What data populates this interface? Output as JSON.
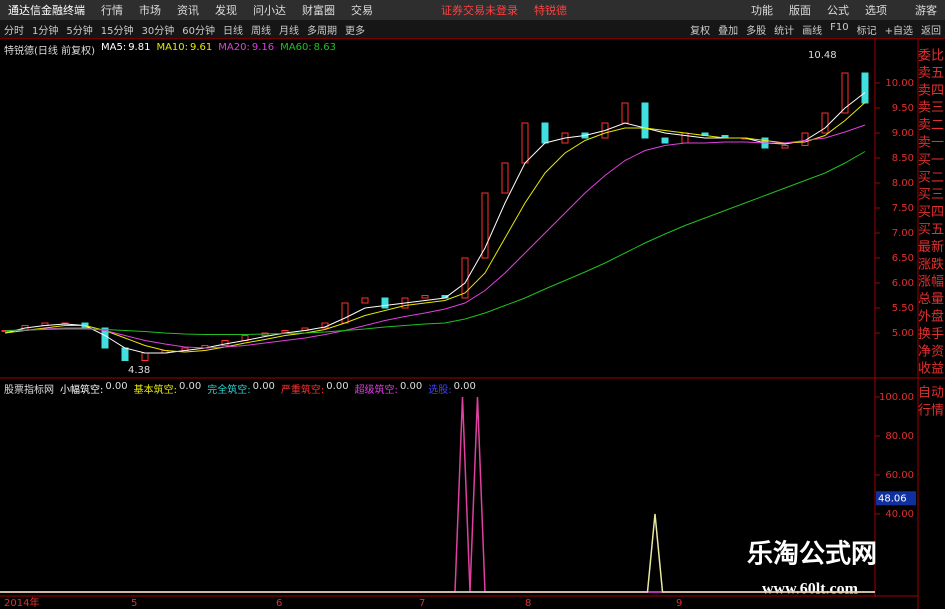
{
  "app": {
    "title": "通达信金融终端",
    "menu": [
      "行情",
      "市场",
      "资讯",
      "发现",
      "问小达",
      "财富圈",
      "交易"
    ],
    "notice": "证券交易未登录",
    "stock": "特锐德",
    "right_menu": [
      "功能",
      "版面",
      "公式",
      "选项"
    ],
    "user": "游客"
  },
  "toolbar": {
    "periods": [
      "分时",
      "1分钟",
      "5分钟",
      "15分钟",
      "30分钟",
      "60分钟",
      "日线",
      "周线",
      "月线",
      "多周期",
      "更多"
    ],
    "tools": [
      "复权",
      "叠加",
      "多股",
      "统计",
      "画线",
      "F10",
      "标记",
      "+自选",
      "返回"
    ]
  },
  "price_chart": {
    "caption": "特锐德(日线 前复权)",
    "ylim": [
      4.1,
      10.9
    ],
    "yticks": [
      {
        "value": 5,
        "label": "5.00"
      },
      {
        "value": 5.5,
        "label": "5.50"
      },
      {
        "value": 6,
        "label": "6.00"
      },
      {
        "value": 6.5,
        "label": "6.50"
      },
      {
        "value": 7,
        "label": "7.00"
      },
      {
        "value": 7.5,
        "label": "7.50"
      },
      {
        "value": 8,
        "label": "8.00"
      },
      {
        "value": 8.5,
        "label": "8.50"
      },
      {
        "value": 9,
        "label": "9.00"
      },
      {
        "value": 9.5,
        "label": "9.50"
      },
      {
        "value": 10,
        "label": "10.00"
      }
    ],
    "close": [
      5.05,
      5.15,
      5.2,
      5.2,
      5.1,
      4.7,
      4.45,
      4.6,
      4.65,
      4.7,
      4.75,
      4.85,
      4.95,
      5.0,
      5.05,
      5.1,
      5.2,
      5.6,
      5.7,
      5.5,
      5.7,
      5.75,
      5.7,
      6.5,
      7.8,
      8.4,
      9.2,
      8.8,
      9.0,
      8.9,
      9.2,
      9.6,
      8.9,
      8.8,
      9.0,
      8.95,
      8.9,
      8.9,
      8.7,
      8.75,
      9.0,
      9.4,
      10.2,
      9.6
    ],
    "series": [
      {
        "name": "MA5:",
        "current": "9.81",
        "color": "#ffffff",
        "values": [
          5.0,
          5.1,
          5.15,
          5.18,
          5.15,
          4.95,
          4.7,
          4.6,
          4.6,
          4.65,
          4.7,
          4.78,
          4.85,
          4.93,
          5.0,
          5.05,
          5.12,
          5.3,
          5.5,
          5.55,
          5.6,
          5.65,
          5.7,
          6.0,
          6.7,
          7.6,
          8.4,
          8.8,
          8.9,
          8.95,
          9.05,
          9.2,
          9.1,
          9.0,
          8.95,
          8.9,
          8.9,
          8.9,
          8.8,
          8.78,
          8.85,
          9.1,
          9.5,
          9.81
        ]
      },
      {
        "name": "MA10:",
        "current": "9.61",
        "color": "#e8e800",
        "values": [
          5.0,
          5.05,
          5.1,
          5.15,
          5.15,
          5.05,
          4.9,
          4.75,
          4.65,
          4.62,
          4.65,
          4.72,
          4.8,
          4.87,
          4.95,
          5.0,
          5.07,
          5.2,
          5.35,
          5.45,
          5.55,
          5.6,
          5.65,
          5.8,
          6.2,
          6.9,
          7.6,
          8.2,
          8.6,
          8.85,
          9.0,
          9.1,
          9.1,
          9.05,
          9.0,
          8.95,
          8.9,
          8.9,
          8.85,
          8.8,
          8.82,
          8.95,
          9.25,
          9.61
        ]
      },
      {
        "name": "MA20:",
        "current": "9.16",
        "color": "#e040e0",
        "values": [
          5.05,
          5.05,
          5.08,
          5.1,
          5.1,
          5.05,
          4.95,
          4.85,
          4.78,
          4.72,
          4.7,
          4.72,
          4.75,
          4.8,
          4.85,
          4.9,
          4.97,
          5.05,
          5.15,
          5.25,
          5.33,
          5.4,
          5.48,
          5.6,
          5.85,
          6.2,
          6.6,
          7.0,
          7.4,
          7.8,
          8.15,
          8.45,
          8.65,
          8.75,
          8.8,
          8.8,
          8.82,
          8.82,
          8.8,
          8.8,
          8.85,
          8.9,
          9.02,
          9.16
        ]
      },
      {
        "name": "MA60:",
        "current": "8.63",
        "color": "#20c020",
        "values": [
          5.05,
          5.06,
          5.07,
          5.08,
          5.08,
          5.07,
          5.05,
          5.03,
          5.0,
          4.98,
          4.97,
          4.97,
          4.97,
          4.98,
          4.99,
          5.0,
          5.02,
          5.05,
          5.08,
          5.12,
          5.15,
          5.18,
          5.2,
          5.28,
          5.4,
          5.55,
          5.7,
          5.88,
          6.05,
          6.22,
          6.4,
          6.6,
          6.8,
          6.98,
          7.15,
          7.3,
          7.45,
          7.6,
          7.75,
          7.9,
          8.05,
          8.2,
          8.4,
          8.63
        ]
      }
    ],
    "annotations": [
      10.48,
      4.38
    ]
  },
  "side_panel": [
    "委比",
    "卖五",
    "卖四",
    "卖三",
    "卖二",
    "卖一",
    "买一",
    "买二",
    "买三",
    "买四",
    "买五",
    "最新",
    "涨跌",
    "涨幅",
    "总量",
    "外盘",
    "换手",
    "净资",
    "收益"
  ],
  "side_buttons": [
    "自动",
    "行情"
  ],
  "indicator": {
    "name": "股票指标网",
    "fields": [
      {
        "name": "小幅筑空:",
        "value": "0.00",
        "color": "#ffffff"
      },
      {
        "name": "基本筑空:",
        "value": "0.00",
        "color": "#e8e800"
      },
      {
        "name": "完全筑空:",
        "value": "0.00",
        "color": "#30d0d0"
      },
      {
        "name": "严重筑空:",
        "value": "0.00",
        "color": "#ff3030"
      },
      {
        "name": "超级筑空:",
        "value": "0.00",
        "color": "#e040e0"
      },
      {
        "name": "选股:",
        "value": "0.00",
        "color": "#4040ff"
      }
    ],
    "ylim": [
      0,
      108.7
    ],
    "yticks": [
      {
        "value": 40,
        "label": "40.00"
      },
      {
        "value": 60,
        "label": "60.00"
      },
      {
        "value": 80,
        "label": "80.00"
      },
      {
        "value": 100,
        "label": "100.00"
      }
    ],
    "current": 48.06,
    "xlim": [
      0,
      175
    ],
    "lines": [
      {
        "color": "#e040a0",
        "x": [
          0,
          91,
          92.5,
          94,
          95.5,
          97,
          175
        ],
        "values": [
          0,
          0,
          100,
          0,
          100,
          0,
          0
        ]
      },
      {
        "color": "#e8e8a0",
        "x": [
          0,
          129.5,
          131,
          132.5,
          175
        ],
        "values": [
          0,
          0,
          40,
          0,
          0
        ]
      }
    ]
  },
  "dates": [
    "2014年",
    "5",
    "6",
    "7",
    "8",
    "9"
  ],
  "watermark": {
    "title": "乐淘公式网",
    "url": "www.60lt.com"
  }
}
